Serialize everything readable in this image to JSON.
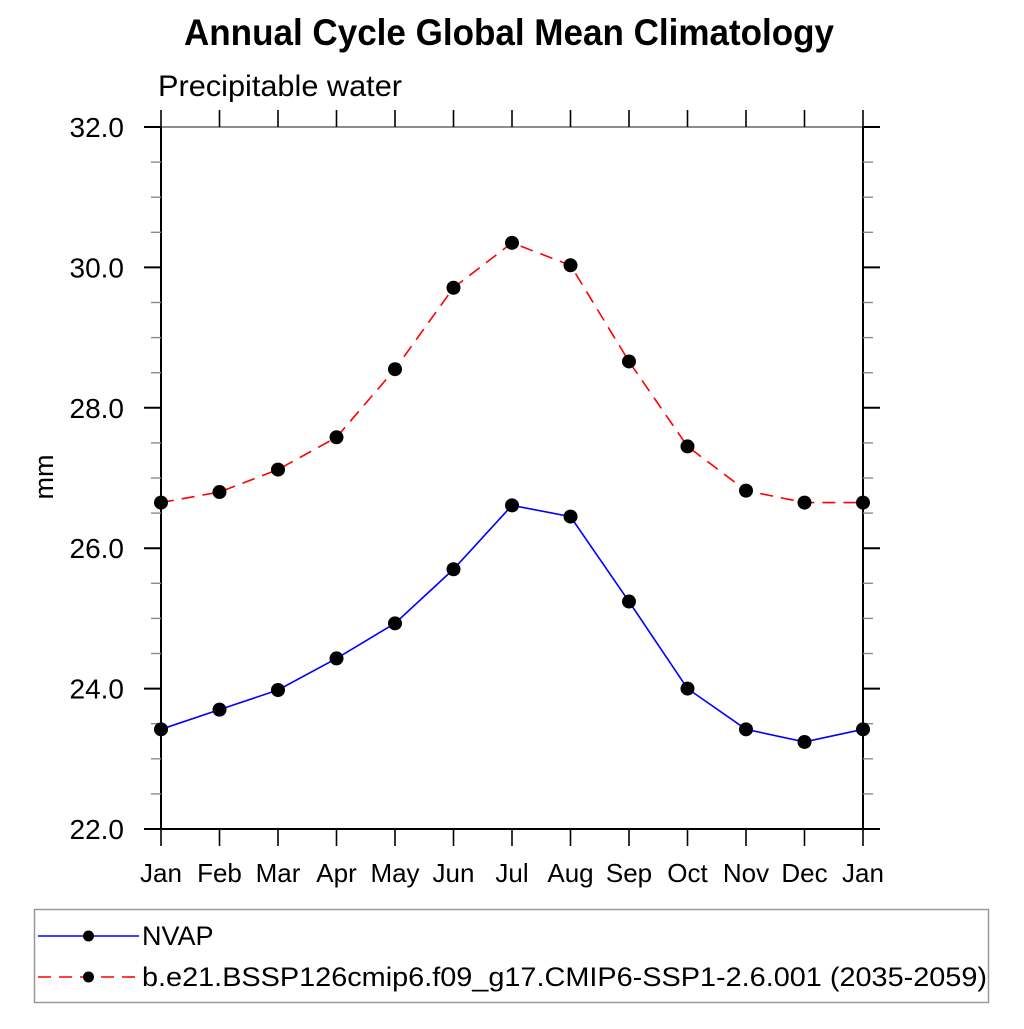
{
  "chart_data": {
    "type": "line",
    "title": "Annual Cycle Global Mean Climatology",
    "subtitle": "Precipitable water",
    "ylabel": "mm",
    "x_categories": [
      "Jan",
      "Feb",
      "Mar",
      "Apr",
      "May",
      "Jun",
      "Jul",
      "Aug",
      "Sep",
      "Oct",
      "Nov",
      "Dec",
      "Jan"
    ],
    "ylim": [
      22.0,
      32.0
    ],
    "y_major_ticks": [
      22.0,
      24.0,
      26.0,
      28.0,
      30.0,
      32.0
    ],
    "y_minor_step": 0.5,
    "grid": false,
    "legend_position": "bottom",
    "marker": "filled-circle",
    "marker_color": "#000000",
    "series": [
      {
        "name": "NVAP",
        "color": "#0000ff",
        "line_style": "solid",
        "values": [
          23.42,
          23.7,
          23.98,
          24.43,
          24.93,
          25.7,
          26.61,
          26.45,
          25.24,
          24.0,
          23.42,
          23.24,
          23.42
        ]
      },
      {
        "name": "b.e21.BSSP126cmip6.f09_g17.CMIP6-SSP1-2.6.001 (2035-2059)",
        "color": "#ff0000",
        "line_style": "dashed",
        "values": [
          26.65,
          26.8,
          27.12,
          27.58,
          28.55,
          29.71,
          30.35,
          30.03,
          28.66,
          27.45,
          26.82,
          26.65,
          26.65
        ]
      }
    ]
  }
}
